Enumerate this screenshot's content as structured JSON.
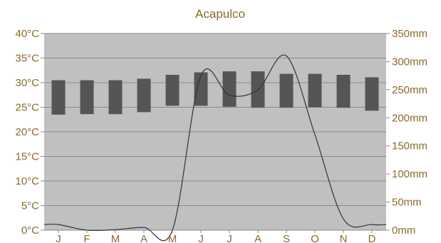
{
  "chart_data": {
    "type": "bar",
    "title": "Acapulco",
    "categories": [
      "J",
      "F",
      "M",
      "A",
      "M",
      "J",
      "J",
      "A",
      "S",
      "O",
      "N",
      "D"
    ],
    "series": [
      {
        "kind": "temperature-range",
        "axis": "left",
        "unit": "°C",
        "min": [
          23.5,
          23.6,
          23.6,
          24.0,
          25.3,
          25.3,
          25.1,
          24.9,
          24.9,
          25.0,
          24.9,
          24.3
        ],
        "max": [
          30.5,
          30.5,
          30.5,
          30.8,
          31.6,
          32.1,
          32.3,
          32.3,
          31.8,
          31.8,
          31.6,
          31.1
        ]
      },
      {
        "kind": "precipitation-line",
        "axis": "right",
        "unit": "mm",
        "values": [
          10,
          0,
          1,
          5,
          0,
          275,
          240,
          250,
          310,
          170,
          20,
          10
        ]
      }
    ],
    "left_axis": {
      "ticks": [
        "0°C",
        "5°C",
        "10°C",
        "15°C",
        "20°C",
        "25°C",
        "30°C",
        "35°C",
        "40°C"
      ],
      "ylim": [
        0,
        40
      ]
    },
    "right_axis": {
      "ticks": [
        "0mm",
        "50mm",
        "100mm",
        "150mm",
        "200mm",
        "250mm",
        "300mm",
        "350mm"
      ],
      "ylim": [
        0,
        350
      ]
    },
    "grid": true,
    "colors": {
      "plot_bg": "#c0c0c0",
      "bar": "#555555",
      "line": "#333333",
      "text": "#8b6a2a",
      "grid": "#8a8a8a"
    }
  }
}
